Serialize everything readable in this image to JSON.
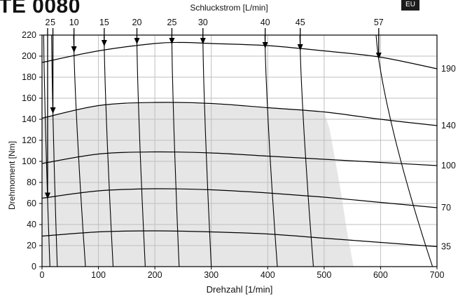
{
  "header": {
    "title": "TE 0080",
    "badge": "EU"
  },
  "colors": {
    "shaded_region": "#e6e6e6",
    "grid": "#bfbfbf",
    "curve": "#000000",
    "badge_bg": "#1c1c1c"
  },
  "chart_data": {
    "type": "line",
    "title": "",
    "top_axis_label": "Schluckstrom [L/min]",
    "xlabel": "Drehzahl [1/min]",
    "ylabel": "Drehmoment [Nm]",
    "xlim": [
      0,
      700
    ],
    "ylim": [
      0,
      220
    ],
    "x_ticks": [
      0,
      100,
      200,
      300,
      400,
      500,
      600,
      700
    ],
    "y_ticks": [
      0,
      20,
      40,
      60,
      80,
      100,
      120,
      140,
      160,
      180,
      200,
      220
    ],
    "grid": true,
    "shaded_region": {
      "description_source": "continuous operating range",
      "boundary": [
        [
          0,
          0
        ],
        [
          0,
          142
        ],
        [
          100,
          153
        ],
        [
          200,
          156
        ],
        [
          300,
          154
        ],
        [
          400,
          151
        ],
        [
          500,
          147
        ],
        [
          510,
          130
        ],
        [
          520,
          100
        ],
        [
          530,
          70
        ],
        [
          540,
          35
        ],
        [
          552,
          0
        ]
      ]
    },
    "power_curves": {
      "unit_label": "",
      "series": [
        {
          "name": "190",
          "x": [
            0,
            100,
            200,
            250,
            300,
            400,
            500,
            600,
            700
          ],
          "y": [
            194,
            205,
            212,
            213,
            212,
            210,
            205,
            199,
            188
          ]
        },
        {
          "name": "140",
          "x": [
            0,
            100,
            200,
            300,
            400,
            500,
            600,
            700
          ],
          "y": [
            141,
            153,
            156,
            155,
            151,
            147,
            140,
            134
          ]
        },
        {
          "name": "100",
          "x": [
            0,
            100,
            200,
            300,
            400,
            500,
            600,
            700
          ],
          "y": [
            98,
            107,
            109,
            108,
            105,
            102,
            99,
            96
          ]
        },
        {
          "name": "70",
          "x": [
            0,
            100,
            200,
            300,
            400,
            500,
            600,
            700
          ],
          "y": [
            65,
            72,
            74,
            73,
            70,
            66,
            61,
            56
          ]
        },
        {
          "name": "35",
          "x": [
            0,
            100,
            200,
            300,
            400,
            500,
            600,
            700
          ],
          "y": [
            29,
            33,
            34,
            33,
            31,
            27,
            23,
            19
          ]
        }
      ]
    },
    "flow_curves": {
      "unit_label": "Schluckstrom [L/min]",
      "series": [
        {
          "name": "2",
          "top_x": 3,
          "bottom_x": 14,
          "arrow_y": 64
        },
        {
          "name": "5",
          "top_x": 17,
          "bottom_x": 27,
          "arrow_y": 145
        },
        {
          "name": "10",
          "top_x": 56,
          "bottom_x": 77,
          "arrow_y": 203
        },
        {
          "name": "15",
          "top_x": 110,
          "bottom_x": 126,
          "arrow_y": 209
        },
        {
          "name": "20",
          "top_x": 168,
          "bottom_x": 183,
          "arrow_y": 211
        },
        {
          "name": "25",
          "top_x": 230,
          "bottom_x": 243,
          "arrow_y": 211
        },
        {
          "name": "30",
          "top_x": 285,
          "bottom_x": 300,
          "arrow_y": 211
        },
        {
          "name": "40",
          "top_x": 395,
          "bottom_x": 417,
          "arrow_y": 207
        },
        {
          "name": "45",
          "top_x": 457,
          "bottom_x": 481,
          "arrow_y": 205
        },
        {
          "name": "57",
          "top_x": 592,
          "bottom_x": 692,
          "arrow_y": 197
        }
      ]
    }
  }
}
